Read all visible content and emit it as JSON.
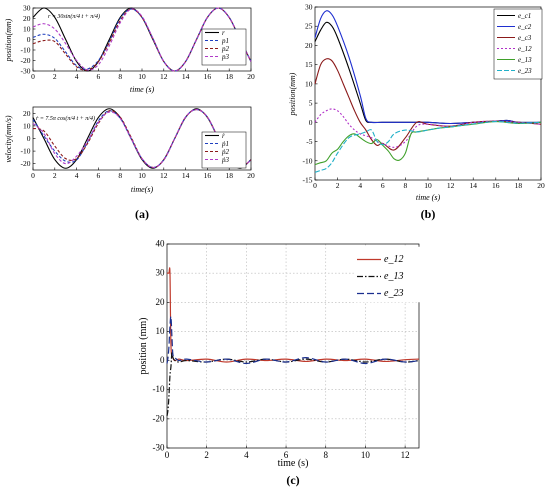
{
  "captions": {
    "a": "(a)",
    "b": "(b)",
    "c": "(c)"
  },
  "chart_data": [
    {
      "id": "a_top",
      "type": "line",
      "annotation": "r = 30sin(π/4 t + π/4)",
      "xlabel": "time (s)",
      "ylabel": "position(mm)",
      "xlim": [
        0,
        20
      ],
      "ylim": [
        -30,
        30
      ],
      "xticks": [
        "0",
        "2",
        "4",
        "6",
        "8",
        "10",
        "12",
        "14",
        "16",
        "18",
        "20"
      ],
      "yticks": [
        "30",
        "20",
        "10",
        "0",
        "-10",
        "-20",
        "-30"
      ],
      "grid": false,
      "legend_position": "right",
      "series": [
        {
          "name": "r",
          "color": "#000000",
          "dash": "",
          "x": [
            0,
            1,
            2,
            3,
            4,
            5,
            6,
            7,
            8,
            9,
            10,
            11,
            12,
            13,
            14,
            15,
            16,
            17,
            18,
            19,
            20
          ],
          "y": [
            21,
            30,
            21,
            0,
            -21,
            -30,
            -21,
            0,
            21,
            30,
            21,
            0,
            -21,
            -30,
            -21,
            0,
            21,
            30,
            21,
            0,
            -21
          ]
        },
        {
          "name": "p1",
          "color": "#1f3fbf",
          "dash": "3,2",
          "x": [
            0,
            1,
            2,
            3,
            4,
            5,
            6,
            7,
            8,
            9,
            10,
            11,
            12,
            13,
            14,
            15,
            16,
            17,
            18,
            19,
            20
          ],
          "y": [
            2,
            5,
            1,
            -12,
            -25,
            -28,
            -20,
            -2,
            20,
            29,
            21,
            1,
            -21,
            -30,
            -21,
            0,
            21,
            30,
            21,
            0,
            -21
          ]
        },
        {
          "name": "p2",
          "color": "#8b1a1a",
          "dash": "3,2",
          "x": [
            0,
            1,
            2,
            3,
            4,
            5,
            6,
            7,
            8,
            9,
            10,
            11,
            12,
            13,
            14,
            15,
            16,
            17,
            18,
            19,
            20
          ],
          "y": [
            -4,
            -1,
            -2,
            -14,
            -26,
            -29,
            -21,
            -3,
            18,
            29,
            21,
            1,
            -21,
            -30,
            -21,
            0,
            21,
            30,
            21,
            0,
            -21
          ]
        },
        {
          "name": "p3",
          "color": "#b03cc8",
          "dash": "3,2",
          "x": [
            0,
            1,
            2,
            3,
            4,
            5,
            6,
            7,
            8,
            9,
            10,
            11,
            12,
            13,
            14,
            15,
            16,
            17,
            18,
            19,
            20
          ],
          "y": [
            12,
            15,
            10,
            -4,
            -20,
            -29,
            -24,
            -6,
            16,
            29,
            22,
            1,
            -21,
            -30,
            -21,
            0,
            21,
            30,
            21,
            0,
            -21
          ]
        }
      ]
    },
    {
      "id": "a_bottom",
      "type": "line",
      "annotation": "ṙ = 7.5π cos(π/4 t + π/4)",
      "xlabel": "time(s)",
      "ylabel": "velocity(mm/s)",
      "xlim": [
        0,
        20
      ],
      "ylim": [
        -25,
        25
      ],
      "xticks": [
        "0",
        "2",
        "4",
        "6",
        "8",
        "10",
        "12",
        "14",
        "16",
        "18",
        "20"
      ],
      "yticks": [
        "20",
        "10",
        "0",
        "-10",
        "-20"
      ],
      "grid": false,
      "legend_position": "right",
      "series": [
        {
          "name": "ṙ",
          "color": "#000000",
          "dash": "",
          "x": [
            0,
            1,
            2,
            3,
            4,
            5,
            6,
            7,
            8,
            9,
            10,
            11,
            12,
            13,
            14,
            15,
            16,
            17,
            18,
            19,
            20
          ],
          "y": [
            16.7,
            0,
            -16.7,
            -23.6,
            -16.7,
            0,
            16.7,
            23.6,
            16.7,
            0,
            -16.7,
            -23.6,
            -16.7,
            0,
            16.7,
            23.6,
            16.7,
            0,
            -16.7,
            -23.6,
            -16.7
          ]
        },
        {
          "name": "ṗ1",
          "color": "#1f3fbf",
          "dash": "3,2",
          "x": [
            0,
            1,
            2,
            3,
            4,
            5,
            6,
            7,
            8,
            9,
            10,
            11,
            12,
            13,
            14,
            15,
            16,
            17,
            18,
            19,
            20
          ],
          "y": [
            15,
            2,
            -10,
            -18,
            -17,
            -3,
            14,
            22,
            16,
            0,
            -16,
            -23,
            -17,
            0,
            17,
            23,
            17,
            0,
            -17,
            -23,
            -17
          ]
        },
        {
          "name": "ṗ2",
          "color": "#8b1a1a",
          "dash": "3,2",
          "x": [
            0,
            1,
            2,
            3,
            4,
            5,
            6,
            7,
            8,
            9,
            10,
            11,
            12,
            13,
            14,
            15,
            16,
            17,
            18,
            19,
            20
          ],
          "y": [
            8,
            6,
            -6,
            -16,
            -16,
            -4,
            12,
            22,
            17,
            1,
            -16,
            -23,
            -17,
            0,
            17,
            23,
            17,
            0,
            -17,
            -23,
            -17
          ]
        },
        {
          "name": "ṗ3",
          "color": "#b03cc8",
          "dash": "3,2",
          "x": [
            0,
            1,
            2,
            3,
            4,
            5,
            6,
            7,
            8,
            9,
            10,
            11,
            12,
            13,
            14,
            15,
            16,
            17,
            18,
            19,
            20
          ],
          "y": [
            12,
            4,
            -12,
            -20,
            -14,
            -2,
            13,
            21,
            16,
            0,
            -16,
            -23,
            -17,
            0,
            17,
            23,
            17,
            0,
            -17,
            -23,
            -17
          ]
        }
      ]
    },
    {
      "id": "b",
      "type": "line",
      "xlabel": "time (s)",
      "ylabel": "position(mm)",
      "xlim": [
        0,
        20
      ],
      "ylim": [
        -15,
        30
      ],
      "xticks": [
        "0",
        "2",
        "4",
        "6",
        "8",
        "10",
        "12",
        "14",
        "16",
        "18",
        "20"
      ],
      "yticks": [
        "30",
        "25",
        "20",
        "15",
        "10",
        "5",
        "0",
        "-5",
        "-10",
        "-15"
      ],
      "grid": false,
      "legend_position": "top-right",
      "series": [
        {
          "name": "e_c1",
          "color": "#000000",
          "dash": "",
          "x": [
            0,
            0.5,
            1,
            1.5,
            2,
            3,
            4,
            4.5,
            5,
            6,
            8,
            10,
            12,
            14,
            16,
            17,
            18,
            20
          ],
          "y": [
            21,
            24,
            26,
            25,
            22,
            14,
            5,
            0.5,
            0,
            0,
            0,
            0,
            -0.3,
            0,
            0.3,
            0.5,
            0,
            0
          ]
        },
        {
          "name": "e_c2",
          "color": "#1f2fd0",
          "dash": "",
          "x": [
            0,
            0.5,
            1,
            1.5,
            2,
            3,
            4,
            4.5,
            5,
            6,
            8,
            10,
            12,
            14,
            16,
            17,
            18,
            20
          ],
          "y": [
            22,
            27,
            29,
            28,
            25,
            17,
            7,
            1,
            0,
            0,
            0,
            0,
            -0.3,
            0,
            0.3,
            0.5,
            0,
            0
          ]
        },
        {
          "name": "e_c3",
          "color": "#8b1a1a",
          "dash": "",
          "x": [
            0,
            0.5,
            1,
            1.5,
            2,
            2.5,
            3,
            3.5,
            4,
            4.5,
            5,
            5.5,
            6,
            7,
            8,
            9,
            10,
            12,
            14,
            16,
            18,
            20
          ],
          "y": [
            10,
            15,
            16.5,
            16,
            13.5,
            10,
            6.5,
            3,
            0,
            -2,
            -4.5,
            -6,
            -5.5,
            -7.2,
            -4,
            0,
            -0.5,
            -1,
            0,
            0.3,
            0,
            -0.5
          ]
        },
        {
          "name": "e_12",
          "color": "#b030c8",
          "dash": "2,2",
          "x": [
            0,
            0.5,
            1,
            1.5,
            2,
            2.5,
            3,
            3.5,
            4,
            4.5,
            5,
            5.5,
            6,
            7,
            8,
            9,
            10,
            12,
            14,
            16,
            18,
            20
          ],
          "y": [
            0,
            2,
            3,
            3.5,
            3,
            1.5,
            -0.5,
            -2,
            -3,
            -3.5,
            -4,
            -5,
            -5.5,
            -6.5,
            -5,
            -1,
            -0.5,
            -1,
            0,
            0.3,
            0,
            -0.5
          ]
        },
        {
          "name": "e_13",
          "color": "#3fa02a",
          "dash": "",
          "x": [
            0,
            0.5,
            1,
            1.5,
            2,
            2.5,
            3,
            3.5,
            4,
            4.5,
            5,
            5.5,
            6,
            6.5,
            7,
            7.5,
            8,
            8.5,
            9,
            10,
            11,
            12,
            13,
            14,
            16,
            18,
            20
          ],
          "y": [
            -11,
            -10.5,
            -10,
            -8,
            -7,
            -5,
            -3.5,
            -3,
            -4,
            -5,
            -5.5,
            -4.5,
            -6,
            -7.5,
            -9.5,
            -9.8,
            -8,
            -3,
            -2.5,
            -2,
            -1.5,
            -1.2,
            -0.8,
            -0.5,
            0.2,
            -0.3,
            0
          ]
        },
        {
          "name": "e_23",
          "color": "#20b0c8",
          "dash": "5,2",
          "x": [
            0,
            0.5,
            1,
            1.5,
            2,
            3,
            4,
            4.5,
            5,
            5.5,
            6,
            6.5,
            7,
            8,
            9,
            10,
            11,
            12,
            13,
            14,
            16,
            18,
            20
          ],
          "y": [
            -13,
            -12.5,
            -12,
            -10.5,
            -8,
            -4,
            -3,
            -2.5,
            -2,
            -5,
            -5.8,
            -5,
            -3,
            -2,
            -2.5,
            -2,
            -1.5,
            -1.2,
            -0.8,
            -0.4,
            0.2,
            -0.2,
            0
          ]
        }
      ]
    },
    {
      "id": "c",
      "type": "line",
      "xlabel": "time (s)",
      "ylabel": "position (mm)",
      "xlim": [
        0,
        12.7
      ],
      "ylim": [
        -30,
        40
      ],
      "xticks": [
        "0",
        "2",
        "4",
        "6",
        "8",
        "10",
        "12"
      ],
      "yticks": [
        "40",
        "30",
        "20",
        "10",
        "0",
        "-10",
        "-20",
        "-30"
      ],
      "grid": true,
      "legend_position": "top-right",
      "series": [
        {
          "name": "e_12",
          "color": "#c0392b",
          "dash": "",
          "x": [
            0,
            0.05,
            0.1,
            0.15,
            0.2,
            0.3,
            0.4,
            0.6,
            1,
            2,
            3,
            4,
            5,
            6,
            7,
            8,
            9,
            10,
            11,
            12,
            12.7
          ],
          "y": [
            30,
            30,
            30,
            30,
            5,
            1,
            0,
            0.5,
            0,
            0.5,
            -0.5,
            0.5,
            0,
            0.5,
            -0.3,
            0.5,
            0,
            0.5,
            -0.3,
            0.3,
            0.5
          ]
        },
        {
          "name": "e_13",
          "color": "#111111",
          "dash": "6,2,1.5,2",
          "x": [
            0,
            0.05,
            0.1,
            0.15,
            0.2,
            0.25,
            0.3,
            0.4,
            0.6,
            1,
            2,
            3,
            4,
            5,
            6,
            7,
            8,
            9,
            10,
            11,
            12,
            12.7
          ],
          "y": [
            -19,
            -17,
            -12,
            -5,
            -2,
            3,
            1,
            0,
            -0.5,
            0,
            -0.5,
            0.5,
            -0.5,
            0.5,
            -0.5,
            0.5,
            -0.5,
            0.5,
            -0.5,
            0.5,
            -0.5,
            0
          ]
        },
        {
          "name": "e_23",
          "color": "#1a2f8f",
          "dash": "7,3",
          "x": [
            0,
            0.05,
            0.1,
            0.15,
            0.2,
            0.25,
            0.3,
            0.4,
            0.6,
            1,
            2,
            3,
            4,
            5,
            6,
            7,
            8,
            9,
            10,
            11,
            12,
            12.7
          ],
          "y": [
            -1,
            1,
            5,
            12,
            15,
            8,
            2,
            1,
            0,
            0.5,
            -0.5,
            0.5,
            -1,
            0.5,
            -0.5,
            1,
            -0.5,
            0.5,
            -1,
            0.5,
            -0.5,
            0
          ]
        }
      ]
    }
  ]
}
